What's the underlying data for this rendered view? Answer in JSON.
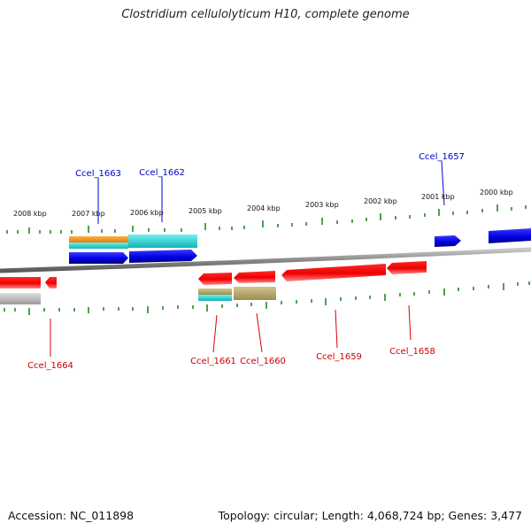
{
  "title": "Clostridium cellulolyticum H10, complete genome",
  "accession": "Accession: NC_011898",
  "summary": "Topology: circular; Length: 4,068,724 bp; Genes: 3,477",
  "colors": {
    "forward_cds": "#0000ee",
    "reverse_cds": "#ee0000",
    "backbone": "#8c8c8c",
    "tick": "#228b22",
    "orange": "#f0901e",
    "cyan": "#1ec8c8",
    "olive": "#b4a86a",
    "grey": "#b8b8b8"
  },
  "scale_labels": [
    "2008 kbp",
    "2007 kbp",
    "2006 kbp",
    "2005 kbp",
    "2004 kbp",
    "2003 kbp",
    "2002 kbp",
    "2001 kbp",
    "2000 kbp"
  ],
  "forward_gene_labels": [
    "Ccel_1663",
    "Ccel_1662",
    "Ccel_1657"
  ],
  "reverse_gene_labels": [
    "Ccel_1664",
    "Ccel_1661",
    "Ccel_1660",
    "Ccel_1659",
    "Ccel_1658"
  ]
}
